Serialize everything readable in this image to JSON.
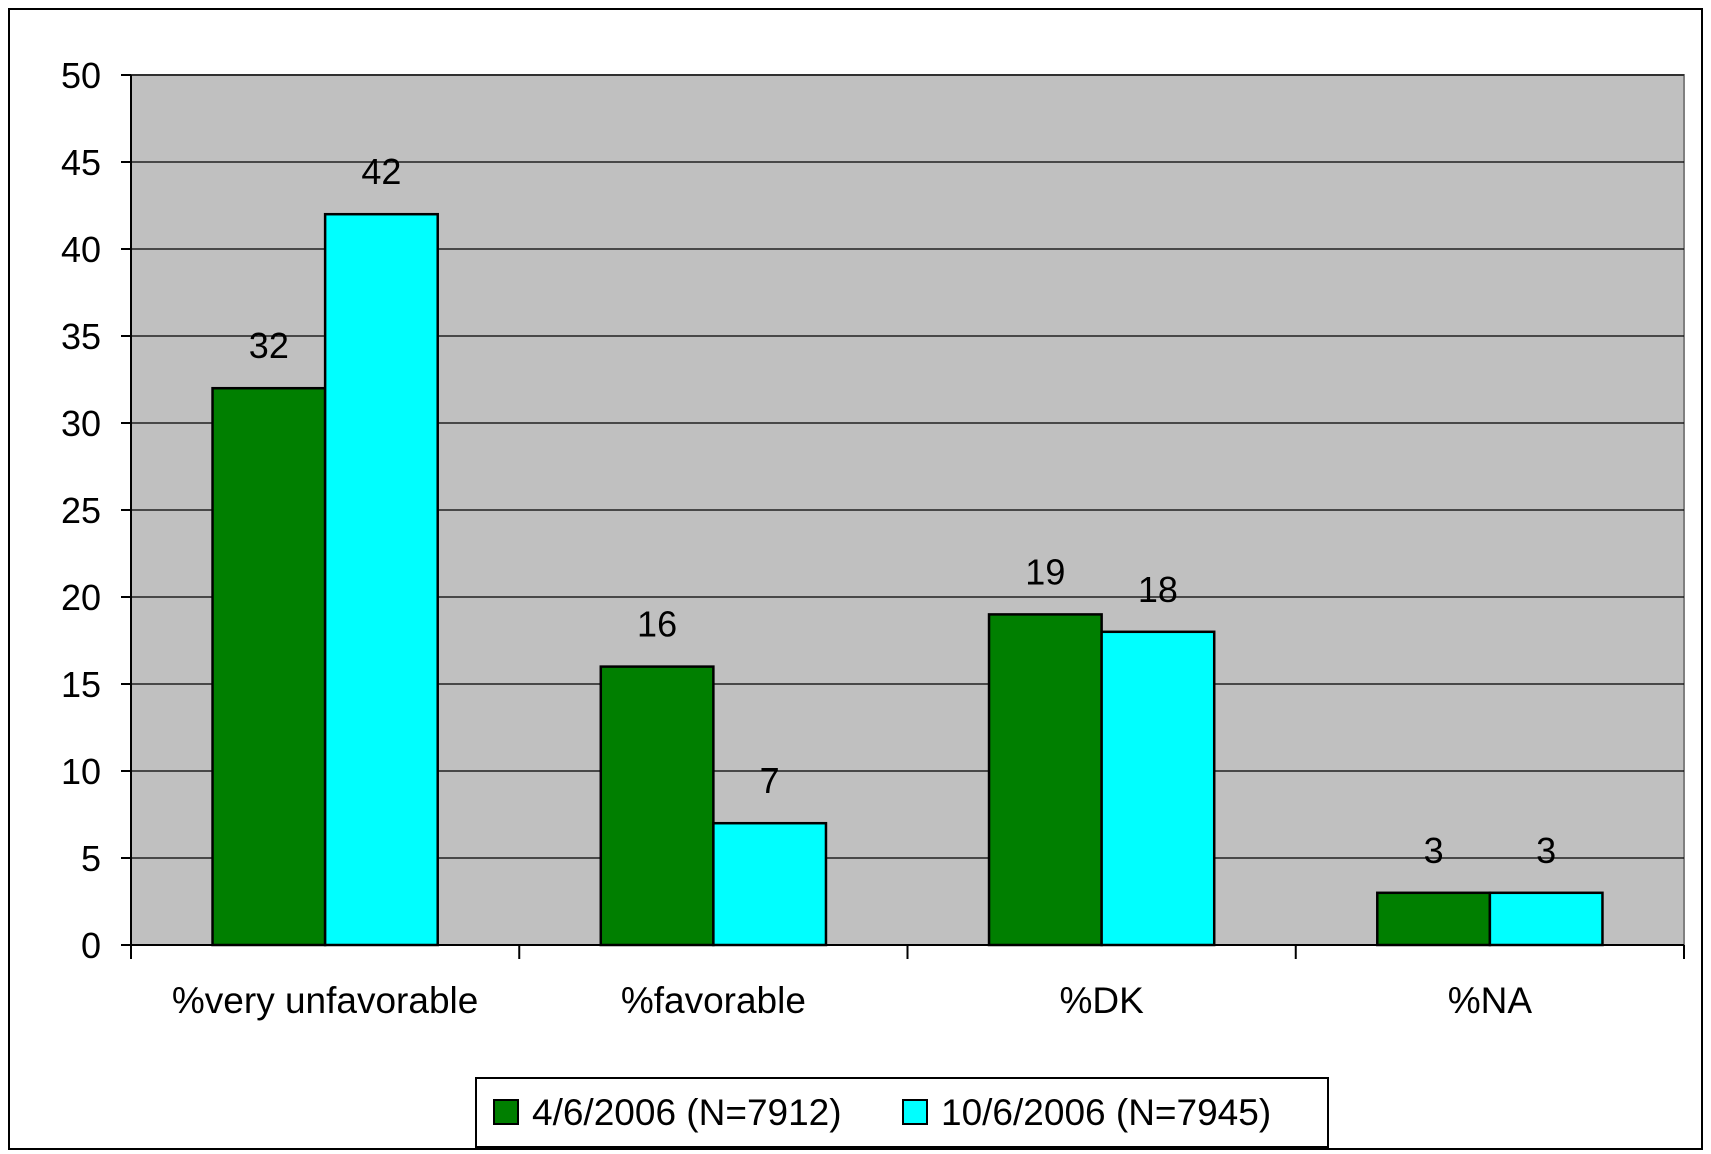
{
  "chart_data": {
    "type": "bar",
    "title": "",
    "xlabel": "",
    "ylabel": "",
    "categories": [
      "%very unfavorable",
      "%favorable",
      "%DK",
      "%NA"
    ],
    "series": [
      {
        "name": "4/6/2006 (N=7912)",
        "values": [
          32,
          16,
          19,
          3
        ],
        "data_labels": [
          "32",
          "16",
          "19",
          "3"
        ],
        "color": "#007F00"
      },
      {
        "name": "10/6/2006 (N=7945)",
        "values": [
          42,
          7,
          18,
          3
        ],
        "data_labels": [
          "42",
          "7",
          "18",
          "3"
        ],
        "color": "#00FFFF"
      }
    ],
    "ylim": [
      0,
      50
    ],
    "yticks": [
      0,
      5,
      10,
      15,
      20,
      25,
      30,
      35,
      40,
      45,
      50
    ],
    "grid": true,
    "plot_background": "#C0C0C0",
    "legend": "bottom"
  }
}
